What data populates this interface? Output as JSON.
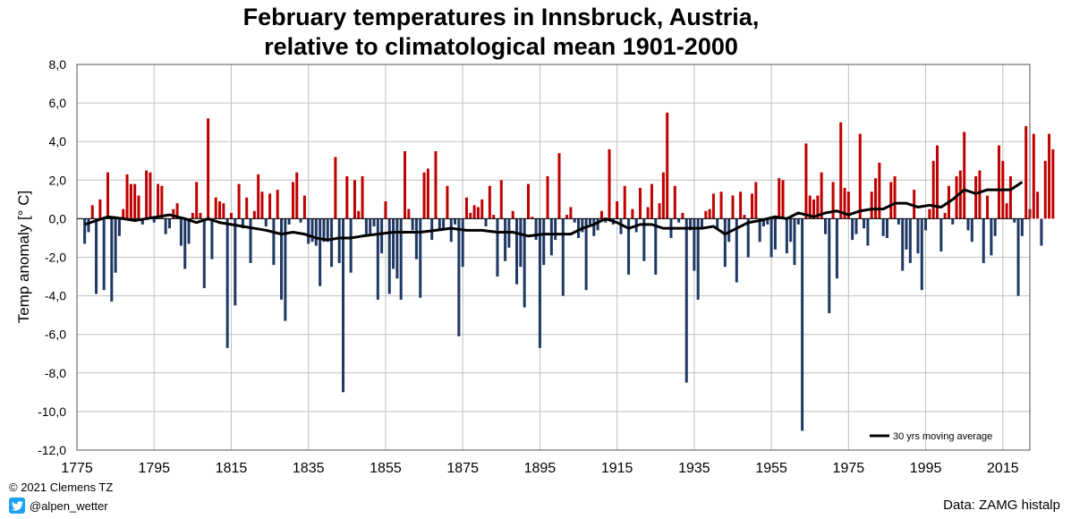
{
  "chart_data": {
    "type": "bar",
    "title_lines": [
      "February temperatures in Innsbruck, Austria,",
      "relative to climatological mean 1901-2000"
    ],
    "xlabel": "",
    "ylabel": "Temp anomaly [° C]",
    "ylim": [
      -12,
      8
    ],
    "xlim": [
      1775,
      2022
    ],
    "y_ticks": [
      "8,0",
      "6,0",
      "4,0",
      "2,0",
      "0,0",
      "-2,0",
      "-4,0",
      "-6,0",
      "-8,0",
      "-10,0",
      "-12,0"
    ],
    "x_ticks": [
      "1775",
      "1795",
      "1815",
      "1835",
      "1855",
      "1875",
      "1895",
      "1915",
      "1935",
      "1955",
      "1975",
      "1995",
      "2015"
    ],
    "grid": true,
    "positive_color": "#c00000",
    "negative_color": "#1f3864",
    "line_color": "#000000",
    "legend": {
      "label": "30 yrs moving average",
      "placement": "bottom-right"
    },
    "years_start": 1777,
    "anomalies": [
      -1.3,
      -0.7,
      0.7,
      -3.9,
      1.0,
      -3.7,
      2.4,
      -4.3,
      -2.8,
      -0.9,
      0.5,
      2.3,
      1.8,
      1.8,
      1.2,
      -0.3,
      2.5,
      2.4,
      -0.2,
      1.8,
      1.7,
      -0.8,
      -0.5,
      0.5,
      0.8,
      -1.4,
      -2.6,
      -1.3,
      0.3,
      1.9,
      0.3,
      -3.6,
      5.2,
      -2.1,
      1.1,
      0.9,
      0.8,
      -6.7,
      0.3,
      -4.5,
      1.8,
      -0.5,
      1.1,
      -2.3,
      0.4,
      2.3,
      1.4,
      -0.4,
      1.3,
      -2.4,
      1.5,
      -4.2,
      -5.3,
      -0.3,
      1.9,
      2.4,
      -0.2,
      1.2,
      -1.3,
      -1.2,
      -1.4,
      -3.5,
      -1.2,
      -1.2,
      -2.5,
      3.2,
      -2.3,
      -9.0,
      2.2,
      -2.8,
      2.0,
      0.4,
      2.2,
      -0.9,
      -0.9,
      -0.4,
      -4.2,
      -1.8,
      0.9,
      -3.9,
      -2.6,
      -3.1,
      -4.2,
      3.5,
      0.5,
      -0.6,
      -2.1,
      -4.1,
      2.4,
      2.6,
      -1.1,
      3.5,
      -0.6,
      -0.5,
      1.7,
      -1.2,
      -0.3,
      -6.1,
      -2.5,
      1.1,
      0.3,
      0.7,
      0.6,
      1.0,
      -0.4,
      1.7,
      0.2,
      -3.0,
      2.0,
      -2.2,
      -1.5,
      0.4,
      -3.4,
      -2.5,
      -4.6,
      1.8,
      0.1,
      -1.1,
      -6.7,
      -2.4,
      2.2,
      -1.9,
      -1.1,
      3.4,
      -4.0,
      0.2,
      0.6,
      -0.2,
      -1.0,
      -0.7,
      -3.7,
      -0.3,
      -0.9,
      -0.6,
      0.4,
      -0.2,
      3.6,
      -0.3,
      0.9,
      -0.8,
      1.7,
      -2.9,
      0.5,
      -0.7,
      1.6,
      -2.2,
      0.6,
      1.8,
      -2.9,
      0.8,
      2.4,
      5.5,
      -1.0,
      1.7,
      -0.2,
      0.3,
      -8.5,
      -0.6,
      -2.7,
      -4.2,
      -0.5,
      0.4,
      0.5,
      1.3,
      -0.5,
      1.4,
      -2.5,
      -1.2,
      1.2,
      -3.3,
      1.4,
      0.2,
      -2.0,
      1.3,
      1.9,
      -1.2,
      -0.4,
      -0.3,
      -2.0,
      -1.6,
      2.1,
      2.0,
      -1.8,
      -1.2,
      -2.4,
      -0.3,
      -11.0,
      3.9,
      1.2,
      1.0,
      1.2,
      2.4,
      -0.8,
      -4.9,
      1.9,
      -3.1,
      5.0,
      1.6,
      1.4,
      -1.1,
      -0.8,
      4.4,
      -0.5,
      -1.4,
      1.4,
      2.1,
      2.9,
      -0.9,
      -1.0,
      1.9,
      2.2,
      -0.3,
      -2.7,
      -1.6,
      -2.3,
      1.5,
      -1.8,
      -3.7,
      -0.6,
      0.5,
      3.0,
      3.8,
      -1.7,
      0.3,
      1.7,
      -0.3,
      2.2,
      2.5,
      4.5,
      -0.6,
      -1.2,
      2.2,
      2.5,
      -2.3,
      1.2,
      -1.9,
      -0.9,
      3.8,
      3.0,
      0.8,
      2.2,
      -0.2,
      -4.0,
      -0.9,
      4.8,
      0.5,
      4.4,
      1.4,
      -1.4,
      3.0,
      4.4,
      3.6
    ],
    "moving_average": [
      [
        1777,
        -0.3
      ],
      [
        1780,
        -0.1
      ],
      [
        1783,
        0.1
      ],
      [
        1787,
        0.0
      ],
      [
        1790,
        -0.1
      ],
      [
        1793,
        0.0
      ],
      [
        1796,
        0.1
      ],
      [
        1799,
        0.2
      ],
      [
        1803,
        0.0
      ],
      [
        1806,
        -0.2
      ],
      [
        1809,
        0.0
      ],
      [
        1812,
        -0.2
      ],
      [
        1815,
        -0.3
      ],
      [
        1818,
        -0.4
      ],
      [
        1821,
        -0.5
      ],
      [
        1824,
        -0.6
      ],
      [
        1828,
        -0.8
      ],
      [
        1831,
        -0.7
      ],
      [
        1834,
        -0.8
      ],
      [
        1837,
        -1.0
      ],
      [
        1840,
        -1.1
      ],
      [
        1843,
        -1.0
      ],
      [
        1846,
        -1.0
      ],
      [
        1849,
        -0.9
      ],
      [
        1853,
        -0.8
      ],
      [
        1857,
        -0.7
      ],
      [
        1860,
        -0.7
      ],
      [
        1864,
        -0.7
      ],
      [
        1868,
        -0.6
      ],
      [
        1872,
        -0.5
      ],
      [
        1876,
        -0.6
      ],
      [
        1880,
        -0.6
      ],
      [
        1884,
        -0.7
      ],
      [
        1888,
        -0.7
      ],
      [
        1892,
        -0.9
      ],
      [
        1896,
        -0.8
      ],
      [
        1900,
        -0.8
      ],
      [
        1903,
        -0.8
      ],
      [
        1906,
        -0.5
      ],
      [
        1909,
        -0.3
      ],
      [
        1912,
        0.0
      ],
      [
        1915,
        -0.2
      ],
      [
        1918,
        -0.5
      ],
      [
        1921,
        -0.3
      ],
      [
        1924,
        -0.3
      ],
      [
        1927,
        -0.5
      ],
      [
        1930,
        -0.5
      ],
      [
        1934,
        -0.5
      ],
      [
        1937,
        -0.5
      ],
      [
        1940,
        -0.4
      ],
      [
        1943,
        -0.8
      ],
      [
        1946,
        -0.5
      ],
      [
        1949,
        -0.2
      ],
      [
        1952,
        -0.1
      ],
      [
        1956,
        0.1
      ],
      [
        1959,
        0.0
      ],
      [
        1962,
        0.3
      ],
      [
        1966,
        0.1
      ],
      [
        1969,
        0.3
      ],
      [
        1972,
        0.4
      ],
      [
        1975,
        0.2
      ],
      [
        1978,
        0.4
      ],
      [
        1981,
        0.5
      ],
      [
        1984,
        0.5
      ],
      [
        1987,
        0.8
      ],
      [
        1990,
        0.8
      ],
      [
        1993,
        0.6
      ],
      [
        1996,
        0.7
      ],
      [
        1999,
        0.6
      ],
      [
        2002,
        1.0
      ],
      [
        2005,
        1.5
      ],
      [
        2008,
        1.3
      ],
      [
        2011,
        1.5
      ],
      [
        2014,
        1.5
      ],
      [
        2017,
        1.5
      ],
      [
        2020,
        1.9
      ]
    ]
  },
  "footer": {
    "copyright": "© 2021 Clemens TZ",
    "handle": "@alpen_wetter",
    "source": "Data: ZAMG histalp"
  },
  "icons": {
    "twitter": "twitter-bird-icon"
  }
}
